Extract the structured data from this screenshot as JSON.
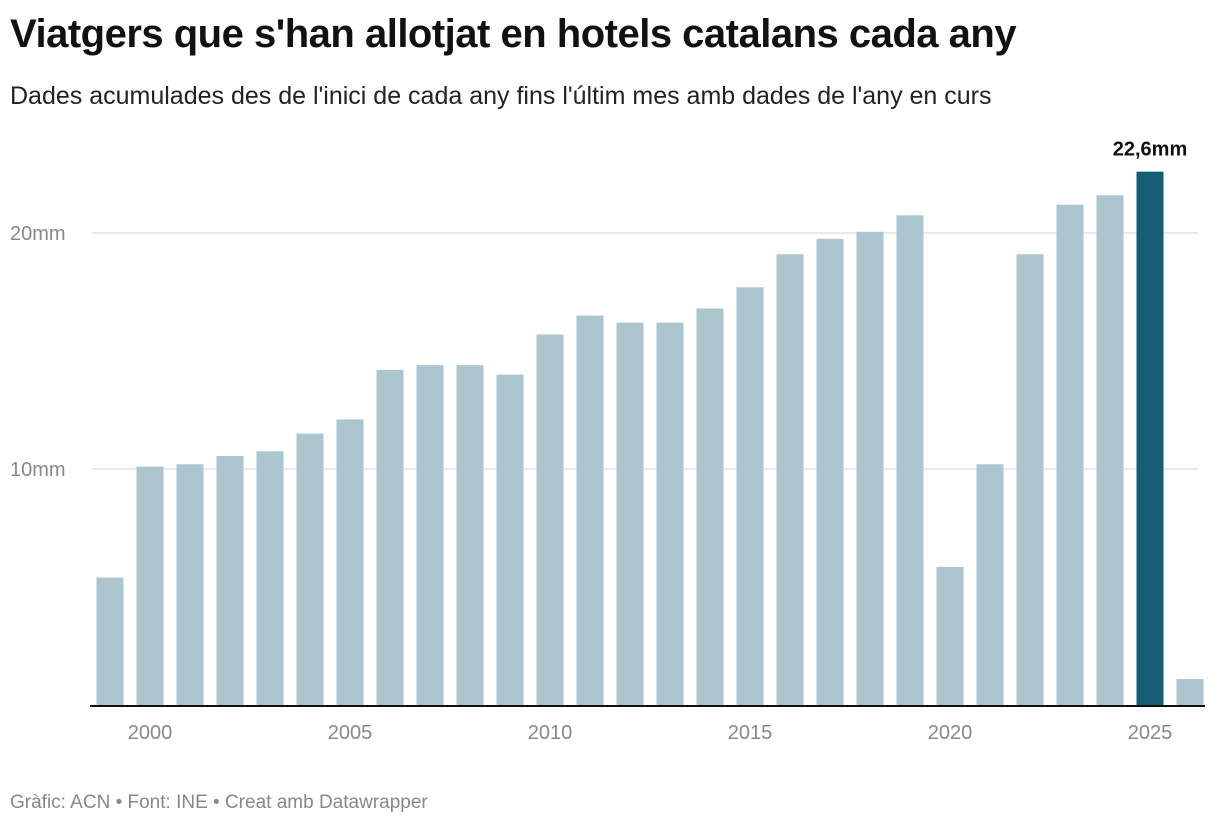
{
  "header": {
    "title": "Viatgers que s'han allotjat en hotels catalans cada any",
    "subtitle": "Dades acumulades des de l'inici de cada any fins l'últim mes amb dades de l'any en curs"
  },
  "footer": {
    "text": "Gràfic: ACN • Font: INE • Creat amb Datawrapper"
  },
  "colors": {
    "bar": "#abc6ce",
    "highlight": "#175e75",
    "gridline": "#e2e2e2",
    "baseline": "#111111"
  },
  "chart_data": {
    "type": "bar",
    "title": "Viatgers que s'han allotjat en hotels catalans cada any",
    "subtitle": "Dades acumulades des de l'inici de cada any fins l'últim mes amb dades de l'any en curs",
    "xlabel": "",
    "ylabel": "",
    "unit": "milions (mm)",
    "categories": [
      1999,
      2000,
      2001,
      2002,
      2003,
      2004,
      2005,
      2006,
      2007,
      2008,
      2009,
      2010,
      2011,
      2012,
      2013,
      2014,
      2015,
      2016,
      2017,
      2018,
      2019,
      2020,
      2021,
      2022,
      2023,
      2024,
      2025,
      2026
    ],
    "values": [
      5.4,
      10.1,
      10.2,
      10.55,
      10.75,
      11.5,
      12.1,
      14.2,
      14.4,
      14.4,
      14.0,
      15.7,
      16.5,
      16.2,
      16.2,
      16.8,
      17.7,
      19.1,
      19.75,
      20.05,
      20.75,
      5.85,
      10.2,
      19.1,
      21.2,
      21.6,
      22.6,
      1.1
    ],
    "highlight_category": 2025,
    "annotation": {
      "category": 2025,
      "label": "22,6mm"
    },
    "ylim": [
      0,
      22.6
    ],
    "yticks": [
      {
        "value": 10,
        "label": "10mm"
      },
      {
        "value": 20,
        "label": "20mm"
      }
    ],
    "xticks": [
      2000,
      2005,
      2010,
      2015,
      2020,
      2025
    ],
    "grid": true,
    "legend": "none"
  }
}
